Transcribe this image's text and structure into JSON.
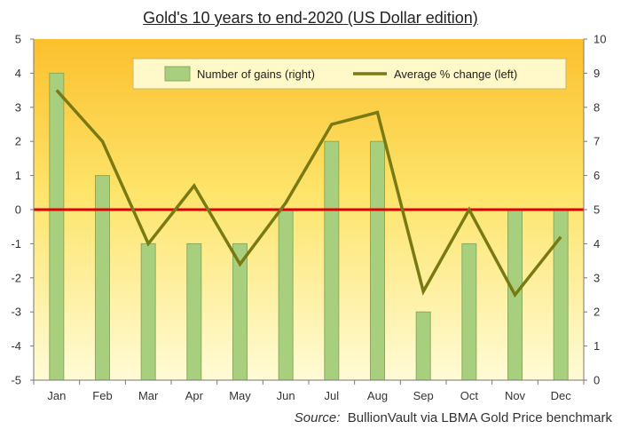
{
  "chart_data": {
    "type": "bar",
    "title": "Gold's 10 years to end-2020 (US Dollar edition)",
    "source_label": "Source:",
    "source_text": "BullionVault via LBMA Gold Price benchmark",
    "categories": [
      "Jan",
      "Feb",
      "Mar",
      "Apr",
      "May",
      "Jun",
      "Jul",
      "Aug",
      "Sep",
      "Oct",
      "Nov",
      "Dec"
    ],
    "series": [
      {
        "name": "Number of gains (right)",
        "type": "bar",
        "axis": "right",
        "values": [
          9,
          6,
          4,
          4,
          4,
          5,
          7,
          7,
          2,
          4,
          5,
          5
        ],
        "color": "#a8cf7e"
      },
      {
        "name": "Average % change (left)",
        "type": "line",
        "axis": "left",
        "values": [
          3.5,
          2.0,
          -1.0,
          0.7,
          -1.6,
          0.2,
          2.5,
          2.85,
          -2.4,
          0.0,
          -2.5,
          -0.8
        ],
        "color": "#7a7a14"
      }
    ],
    "ylim_left": [
      -5,
      5
    ],
    "ylim_right": [
      0,
      10
    ],
    "yticks_left": [
      5,
      4,
      3,
      2,
      1,
      0,
      -1,
      -2,
      -3,
      -4,
      -5
    ],
    "yticks_right": [
      10,
      9,
      8,
      7,
      6,
      5,
      4,
      3,
      2,
      1,
      0
    ],
    "zero_line_color": "#e00000",
    "grid": false,
    "legend_position": "top-right"
  }
}
